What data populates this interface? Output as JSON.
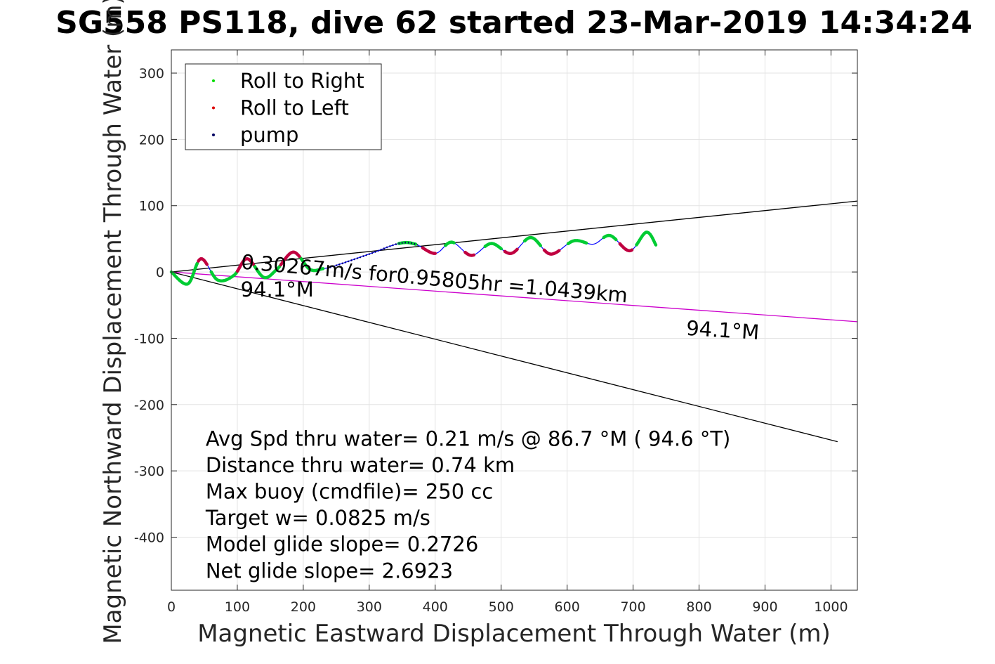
{
  "chart_data": {
    "type": "scatter",
    "title": "SG558 PS118, dive 62 started 23-Mar-2019 14:34:24",
    "xlabel": "Magnetic Eastward Displacement Through Water (m)",
    "ylabel": "Magnetic Northward Displacement Through Water (m)",
    "xlim": [
      0,
      1040
    ],
    "ylim": [
      -480,
      335
    ],
    "xticks": [
      0,
      100,
      200,
      300,
      400,
      500,
      600,
      700,
      800,
      900,
      1000
    ],
    "yticks": [
      -400,
      -300,
      -200,
      -100,
      0,
      100,
      200,
      300
    ],
    "grid": true,
    "legend_position": "top-left",
    "legend": [
      {
        "label": "Roll to Right",
        "color": "#00dd00"
      },
      {
        "label": "Roll to Left",
        "color": "#dd0000"
      },
      {
        "label": "pump",
        "color": "#000060"
      }
    ],
    "colors": {
      "track": "#0000ff",
      "roll_right": "#00cc33",
      "roll_left": "#c00040",
      "pump": "#000060",
      "heading_line": "#cc00cc",
      "cone_lines": "#000000"
    },
    "track_waypoints": [
      [
        0,
        0
      ],
      [
        25,
        -18
      ],
      [
        45,
        20
      ],
      [
        70,
        -12
      ],
      [
        95,
        -5
      ],
      [
        115,
        20
      ],
      [
        140,
        -8
      ],
      [
        160,
        4
      ],
      [
        185,
        30
      ],
      [
        210,
        4
      ],
      [
        230,
        5
      ],
      [
        250,
        10
      ],
      [
        300,
        27
      ],
      [
        345,
        43
      ],
      [
        370,
        42
      ],
      [
        400,
        28
      ],
      [
        425,
        45
      ],
      [
        455,
        25
      ],
      [
        485,
        43
      ],
      [
        515,
        28
      ],
      [
        545,
        52
      ],
      [
        575,
        27
      ],
      [
        610,
        47
      ],
      [
        640,
        42
      ],
      [
        665,
        55
      ],
      [
        695,
        32
      ],
      [
        720,
        60
      ],
      [
        735,
        40
      ]
    ],
    "roll_right_segments": [
      [
        0,
        40
      ],
      [
        60,
        100
      ],
      [
        125,
        165
      ],
      [
        195,
        230
      ],
      [
        345,
        372
      ],
      [
        415,
        430
      ],
      [
        475,
        500
      ],
      [
        535,
        560
      ],
      [
        600,
        630
      ],
      [
        655,
        675
      ],
      [
        705,
        735
      ]
    ],
    "roll_left_segments": [
      [
        40,
        55
      ],
      [
        100,
        125
      ],
      [
        165,
        195
      ],
      [
        380,
        400
      ],
      [
        445,
        460
      ],
      [
        505,
        525
      ],
      [
        565,
        590
      ],
      [
        680,
        700
      ]
    ],
    "pump_segment": [
      240,
      375
    ],
    "reference_lines": [
      {
        "name": "",
        "x": [
          0,
          1040
        ],
        "y": [
          0,
          107
        ]
      },
      {
        "name": "",
        "x": [
          0,
          1010
        ],
        "y": [
          0,
          -256
        ]
      },
      {
        "name": "",
        "x": [
          0,
          1040
        ],
        "y": [
          0,
          -75
        ]
      }
    ],
    "annotations": [
      {
        "text": "0.30267m/s for0.95805hr =1.0439km",
        "x": 105,
        "y": 5,
        "rotation_deg": 5.0
      },
      {
        "text": "94.1°M",
        "x": 105,
        "y": -37,
        "rotation_deg": 0
      },
      {
        "text": "94.1°M",
        "x": 780,
        "y": -95,
        "rotation_deg": 3.5
      }
    ],
    "stats_text": [
      "Avg Spd thru water=  0.21 m/s @  86.7 °M ( 94.6 °T)",
      "Distance thru water=  0.74 km",
      "Max buoy (cmdfile)= 250 cc",
      "Target w= 0.0825 m/s",
      "Model glide slope= 0.2726",
      "Net glide slope= 2.6923"
    ],
    "stats_anchor": {
      "x": 52,
      "y": -262
    }
  }
}
